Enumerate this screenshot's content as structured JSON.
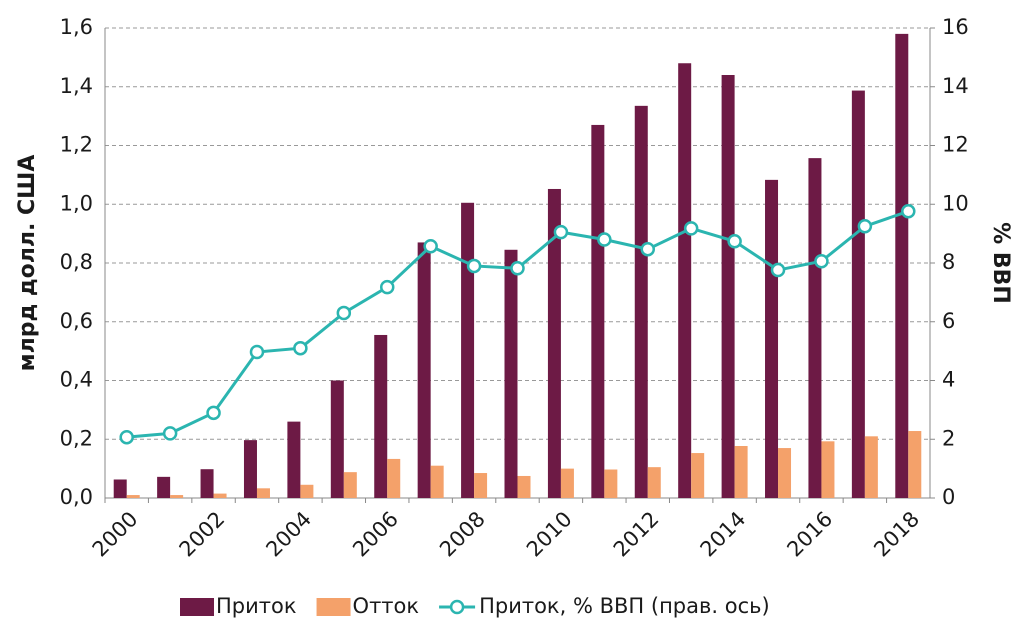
{
  "chart_data": {
    "type": "bar",
    "categories": [
      "2000",
      null,
      "2002",
      null,
      "2004",
      null,
      "2006",
      null,
      "2008",
      null,
      "2010",
      null,
      "2012",
      null,
      "2014",
      null,
      "2016",
      null,
      "2018"
    ],
    "series": [
      {
        "name": "Приток",
        "color": "#6d1a45",
        "values": [
          0.063,
          0.072,
          0.098,
          0.197,
          0.26,
          0.4,
          0.555,
          0.87,
          1.005,
          0.845,
          1.052,
          1.27,
          1.335,
          1.48,
          1.44,
          1.083,
          1.157,
          1.387,
          1.58
        ]
      },
      {
        "name": "Отток",
        "color": "#f4a16a",
        "values": [
          0.01,
          0.01,
          0.015,
          0.033,
          0.045,
          0.088,
          0.133,
          0.11,
          0.085,
          0.075,
          0.1,
          0.097,
          0.105,
          0.153,
          0.177,
          0.17,
          0.193,
          0.21,
          0.228
        ]
      },
      {
        "name": "Приток, % ВВП (прав. ось)",
        "color": "#2bb5b0",
        "type": "line",
        "axis": "y2",
        "values": [
          2.07,
          2.2,
          2.9,
          4.97,
          5.1,
          6.3,
          7.18,
          8.57,
          7.9,
          7.82,
          9.05,
          8.8,
          8.47,
          9.18,
          8.74,
          7.76,
          8.06,
          9.25,
          9.76
        ]
      }
    ],
    "ylabel": "млрд долл. США",
    "y2label": "% ВВП",
    "ylim": [
      0,
      1.6
    ],
    "yticks": [
      {
        "value": 0,
        "label": "0,0"
      },
      {
        "value": 0.2,
        "label": "0,2"
      },
      {
        "value": 0.4,
        "label": "0,4"
      },
      {
        "value": 0.6,
        "label": "0,6"
      },
      {
        "value": 0.8,
        "label": "0,8"
      },
      {
        "value": 1.0,
        "label": "1,0"
      },
      {
        "value": 1.2,
        "label": "1,2"
      },
      {
        "value": 1.4,
        "label": "1,4"
      },
      {
        "value": 1.6,
        "label": "1,6"
      }
    ],
    "y2lim": [
      0,
      16
    ],
    "y2ticks": [
      0,
      2,
      4,
      6,
      8,
      10,
      12,
      14,
      16
    ],
    "grid": true,
    "legend": "bottom"
  }
}
